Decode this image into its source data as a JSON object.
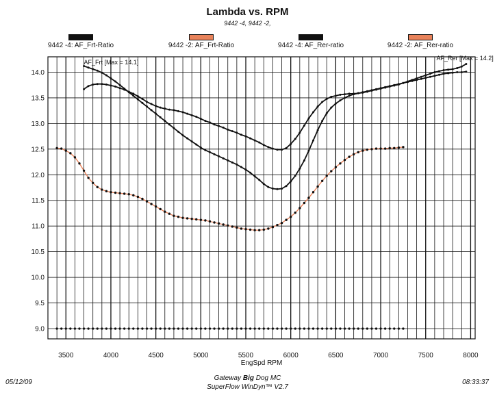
{
  "chart_data": {
    "type": "line",
    "title": "Lambda vs. RPM",
    "subtitle": "9442 -4, 9442 -2,",
    "xlabel": "EngSpd  RPM",
    "ylabel": "",
    "xlim": [
      3300,
      8050
    ],
    "ylim": [
      8.8,
      14.3
    ],
    "xticks": [
      3500,
      4000,
      4500,
      5000,
      5500,
      6000,
      6500,
      7000,
      7500,
      8000
    ],
    "xtick_labels": [
      "3500",
      "4000",
      "4500",
      "5000",
      "5500",
      "6000",
      "6500",
      "7000",
      "7500",
      "8000"
    ],
    "yticks": [
      9.0,
      9.5,
      10.0,
      10.5,
      11.0,
      11.5,
      12.0,
      12.5,
      13.0,
      13.5,
      14.0
    ],
    "ytick_labels": [
      "9.0",
      "9.5",
      "10.0",
      "10.5",
      "11.0",
      "11.5",
      "12.0",
      "12.5",
      "13.0",
      "13.5",
      "14.0"
    ],
    "grid": true,
    "legend_position": "top",
    "legend": [
      {
        "label": "9442 -4: AF_Frt-Ratio",
        "color": "#111111"
      },
      {
        "label": "9442 -2: AF_Frt-Ratio",
        "color": "#e8825a"
      },
      {
        "label": "9442 -4: AF_Rer-ratio",
        "color": "#111111"
      },
      {
        "label": "9442 -2: AF_Rer-ratio",
        "color": "#e8825a"
      }
    ],
    "annotations": [
      {
        "text": "AF_Frt [Max = 14.1]",
        "x": 3700,
        "y": 14.15
      },
      {
        "text": "AF_Rer [Max = 14.2]",
        "x": 7620,
        "y": 14.23
      }
    ],
    "series": [
      {
        "name": "9442 -4: AF_Frt-Ratio",
        "color": "#111111",
        "x": [
          3700,
          3750,
          3800,
          3850,
          3900,
          3950,
          4000,
          4050,
          4100,
          4150,
          4200,
          4250,
          4300,
          4350,
          4400,
          4450,
          4500,
          4550,
          4600,
          4650,
          4700,
          4750,
          4800,
          4850,
          4900,
          4950,
          5000,
          5050,
          5100,
          5150,
          5200,
          5250,
          5300,
          5350,
          5400,
          5450,
          5500,
          5550,
          5600,
          5650,
          5700,
          5750,
          5800,
          5850,
          5900,
          5950,
          6000,
          6050,
          6100,
          6150,
          6200,
          6250,
          6300,
          6350,
          6400,
          6450,
          6500,
          6550,
          6600,
          6650,
          6700,
          6750,
          6800,
          6850,
          6900,
          6950,
          7000,
          7050,
          7100,
          7150,
          7200,
          7250,
          7300,
          7350,
          7400,
          7450,
          7500,
          7550,
          7600,
          7650,
          7700,
          7750,
          7800,
          7850,
          7900,
          7950
        ],
        "y": [
          14.12,
          14.09,
          14.06,
          14.03,
          13.99,
          13.94,
          13.88,
          13.82,
          13.75,
          13.68,
          13.61,
          13.54,
          13.47,
          13.4,
          13.33,
          13.26,
          13.19,
          13.12,
          13.05,
          12.98,
          12.91,
          12.84,
          12.77,
          12.71,
          12.65,
          12.59,
          12.53,
          12.48,
          12.44,
          12.4,
          12.36,
          12.32,
          12.28,
          12.24,
          12.2,
          12.15,
          12.1,
          12.04,
          11.97,
          11.9,
          11.82,
          11.76,
          11.73,
          11.72,
          11.73,
          11.78,
          11.87,
          11.98,
          12.12,
          12.28,
          12.47,
          12.67,
          12.87,
          13.05,
          13.2,
          13.31,
          13.39,
          13.45,
          13.5,
          13.54,
          13.57,
          13.59,
          13.61,
          13.63,
          13.65,
          13.67,
          13.69,
          13.71,
          13.73,
          13.75,
          13.77,
          13.79,
          13.81,
          13.83,
          13.85,
          13.87,
          13.89,
          13.91,
          13.93,
          13.95,
          13.97,
          13.98,
          13.99,
          14.0,
          14.0,
          14.01
        ]
      },
      {
        "name": "9442 -4: AF_Rer-ratio",
        "color": "#111111",
        "x": [
          3700,
          3750,
          3800,
          3850,
          3900,
          3950,
          4000,
          4050,
          4100,
          4150,
          4200,
          4250,
          4300,
          4350,
          4400,
          4450,
          4500,
          4550,
          4600,
          4650,
          4700,
          4750,
          4800,
          4850,
          4900,
          4950,
          5000,
          5050,
          5100,
          5150,
          5200,
          5250,
          5300,
          5350,
          5400,
          5450,
          5500,
          5550,
          5600,
          5650,
          5700,
          5750,
          5800,
          5850,
          5900,
          5950,
          6000,
          6050,
          6100,
          6150,
          6200,
          6250,
          6300,
          6350,
          6400,
          6450,
          6500,
          6550,
          6600,
          6650,
          6700,
          6750,
          6800,
          6850,
          6900,
          6950,
          7000,
          7050,
          7100,
          7150,
          7200,
          7250,
          7300,
          7350,
          7400,
          7450,
          7500,
          7550,
          7600,
          7650,
          7700,
          7750,
          7800,
          7850,
          7900,
          7950
        ],
        "y": [
          13.67,
          13.73,
          13.76,
          13.77,
          13.77,
          13.76,
          13.74,
          13.72,
          13.69,
          13.66,
          13.62,
          13.58,
          13.53,
          13.48,
          13.42,
          13.38,
          13.34,
          13.31,
          13.29,
          13.27,
          13.26,
          13.24,
          13.22,
          13.19,
          13.16,
          13.13,
          13.09,
          13.05,
          13.02,
          12.98,
          12.95,
          12.92,
          12.88,
          12.85,
          12.82,
          12.78,
          12.75,
          12.71,
          12.67,
          12.63,
          12.58,
          12.54,
          12.51,
          12.49,
          12.49,
          12.52,
          12.6,
          12.7,
          12.82,
          12.96,
          13.1,
          13.22,
          13.33,
          13.42,
          13.48,
          13.52,
          13.54,
          13.56,
          13.57,
          13.58,
          13.58,
          13.59,
          13.6,
          13.62,
          13.64,
          13.66,
          13.68,
          13.7,
          13.72,
          13.74,
          13.76,
          13.79,
          13.82,
          13.85,
          13.88,
          13.91,
          13.94,
          13.97,
          14.0,
          14.02,
          14.04,
          14.05,
          14.06,
          14.08,
          14.11,
          14.16
        ]
      },
      {
        "name": "9442 -2: AF_Frt-Ratio",
        "color": "#e8825a",
        "x": [
          3400,
          3450,
          3500,
          3550,
          3600,
          3650,
          3700,
          3750,
          3800,
          3850,
          3900,
          3950,
          4000,
          4050,
          4100,
          4150,
          4200,
          4250,
          4300,
          4350,
          4400,
          4450,
          4500,
          4550,
          4600,
          4650,
          4700,
          4750,
          4800,
          4850,
          4900,
          4950,
          5000,
          5050,
          5100,
          5150,
          5200,
          5250,
          5300,
          5350,
          5400,
          5450,
          5500,
          5550,
          5600,
          5650,
          5700,
          5750,
          5800,
          5850,
          5900,
          5950,
          6000,
          6050,
          6100,
          6150,
          6200,
          6250,
          6300,
          6350,
          6400,
          6450,
          6500,
          6550,
          6600,
          6650,
          6700,
          6750,
          6800,
          6850,
          6900,
          6950,
          7000,
          7050,
          7100,
          7150,
          7200,
          7250
        ],
        "y": [
          12.52,
          12.51,
          12.47,
          12.42,
          12.34,
          12.22,
          12.08,
          11.94,
          11.84,
          11.76,
          11.71,
          11.68,
          11.66,
          11.65,
          11.64,
          11.63,
          11.62,
          11.6,
          11.57,
          11.53,
          11.48,
          11.43,
          11.38,
          11.33,
          11.28,
          11.24,
          11.2,
          11.18,
          11.16,
          11.15,
          11.14,
          11.13,
          11.12,
          11.11,
          11.09,
          11.07,
          11.05,
          11.03,
          11.01,
          10.99,
          10.97,
          10.95,
          10.94,
          10.93,
          10.92,
          10.92,
          10.93,
          10.95,
          10.98,
          11.02,
          11.06,
          11.12,
          11.18,
          11.26,
          11.35,
          11.45,
          11.55,
          11.66,
          11.77,
          11.88,
          11.98,
          12.07,
          12.15,
          12.22,
          12.29,
          12.35,
          12.4,
          12.44,
          12.47,
          12.49,
          12.5,
          12.51,
          12.51,
          12.51,
          12.52,
          12.52,
          12.53,
          12.54
        ]
      },
      {
        "name": "9442 -2: AF_Rer-ratio",
        "color": "#e8825a",
        "x": [
          3400,
          3450,
          3500,
          3550,
          3600,
          3650,
          3700,
          3750,
          3800,
          3850,
          3900,
          3950,
          4000,
          4050,
          4100,
          4150,
          4200,
          4250,
          4300,
          4350,
          4400,
          4450,
          4500,
          4550,
          4600,
          4650,
          4700,
          4750,
          4800,
          4850,
          4900,
          4950,
          5000,
          5050,
          5100,
          5150,
          5200,
          5250,
          5300,
          5350,
          5400,
          5450,
          5500,
          5550,
          5600,
          5650,
          5700,
          5750,
          5800,
          5850,
          5900,
          5950,
          6000,
          6050,
          6100,
          6150,
          6200,
          6250,
          6300,
          6350,
          6400,
          6450,
          6500,
          6550,
          6600,
          6650,
          6700,
          6750,
          6800,
          6850,
          6900,
          6950,
          7000,
          7050,
          7100,
          7150,
          7200,
          7250
        ],
        "y": [
          9.0,
          9.0,
          9.0,
          9.0,
          9.0,
          9.0,
          9.0,
          9.0,
          9.0,
          9.0,
          9.0,
          9.0,
          9.0,
          9.0,
          9.0,
          9.0,
          9.0,
          9.0,
          9.0,
          9.0,
          9.0,
          9.0,
          9.0,
          9.0,
          9.0,
          9.0,
          9.0,
          9.0,
          9.0,
          9.0,
          9.0,
          9.0,
          9.0,
          9.0,
          9.0,
          9.0,
          9.0,
          9.0,
          9.0,
          9.0,
          9.0,
          9.0,
          9.0,
          9.0,
          9.0,
          9.0,
          9.0,
          9.0,
          9.0,
          9.0,
          9.0,
          9.0,
          9.0,
          9.0,
          9.0,
          9.0,
          9.0,
          9.0,
          9.0,
          9.0,
          9.0,
          9.0,
          9.0,
          9.0,
          9.0,
          9.0,
          9.0,
          9.0,
          9.0,
          9.0,
          9.0,
          9.0,
          9.0,
          9.0,
          9.0,
          9.0,
          9.0,
          9.0
        ]
      }
    ]
  },
  "footer": {
    "date": "05/12/09",
    "time": "08:33:37",
    "line1_pre": "Gateway ",
    "line1_bold": "Big",
    "line1_post": " Dog MC",
    "line2": "SuperFlow WinDyn™ V2.7"
  }
}
